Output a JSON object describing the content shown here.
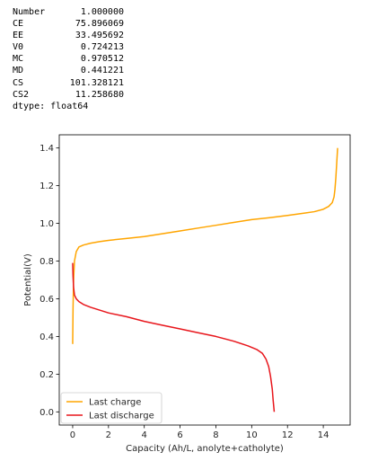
{
  "output": {
    "rows": [
      {
        "key": "Number",
        "value": "1.000000"
      },
      {
        "key": "CE",
        "value": "75.896069"
      },
      {
        "key": "EE",
        "value": "33.495692"
      },
      {
        "key": "V0",
        "value": "0.724213"
      },
      {
        "key": "MC",
        "value": "0.970512"
      },
      {
        "key": "MD",
        "value": "0.441221"
      },
      {
        "key": "CS",
        "value": "101.328121"
      },
      {
        "key": "CS2",
        "value": "11.258680"
      }
    ],
    "dtype": "dtype: float64"
  },
  "chart_data": {
    "type": "line",
    "title": "",
    "xlabel": "Capacity (Ah/L, anolyte+catholyte)",
    "ylabel": "Potential(V)",
    "xlim": [
      -0.75,
      15.5
    ],
    "ylim": [
      -0.07,
      1.47
    ],
    "x_ticks": [
      0,
      2,
      4,
      6,
      8,
      10,
      12,
      14
    ],
    "y_ticks": [
      0.0,
      0.2,
      0.4,
      0.6,
      0.8,
      1.0,
      1.2,
      1.4
    ],
    "x_tick_labels": [
      "0",
      "2",
      "4",
      "6",
      "8",
      "10",
      "12",
      "14"
    ],
    "y_tick_labels": [
      "0.0",
      "0.2",
      "0.4",
      "0.6",
      "0.8",
      "1.0",
      "1.2",
      "1.4"
    ],
    "legend_position": "lower-left",
    "series": [
      {
        "name": "Last charge",
        "color": "#FFA500",
        "x": [
          0.0,
          0.02,
          0.05,
          0.1,
          0.2,
          0.35,
          0.6,
          1.0,
          1.5,
          2.0,
          3.0,
          4.0,
          5.0,
          6.0,
          7.0,
          8.0,
          9.0,
          10.0,
          11.0,
          12.0,
          13.0,
          13.5,
          14.0,
          14.3,
          14.5,
          14.6,
          14.65,
          14.7,
          14.75,
          14.8
        ],
        "y": [
          0.36,
          0.55,
          0.7,
          0.8,
          0.85,
          0.875,
          0.885,
          0.895,
          0.903,
          0.91,
          0.92,
          0.93,
          0.945,
          0.96,
          0.975,
          0.99,
          1.005,
          1.02,
          1.03,
          1.042,
          1.055,
          1.062,
          1.075,
          1.09,
          1.11,
          1.14,
          1.18,
          1.24,
          1.32,
          1.4
        ]
      },
      {
        "name": "Last discharge",
        "color": "#E8161C",
        "x": [
          0.0,
          0.02,
          0.05,
          0.1,
          0.2,
          0.35,
          0.6,
          1.0,
          1.5,
          2.0,
          3.0,
          4.0,
          5.0,
          6.0,
          7.0,
          8.0,
          9.0,
          9.8,
          10.3,
          10.6,
          10.8,
          10.95,
          11.05,
          11.15,
          11.2,
          11.26
        ],
        "y": [
          0.79,
          0.72,
          0.66,
          0.62,
          0.6,
          0.585,
          0.57,
          0.555,
          0.54,
          0.525,
          0.505,
          0.48,
          0.46,
          0.44,
          0.42,
          0.4,
          0.375,
          0.35,
          0.33,
          0.31,
          0.28,
          0.24,
          0.19,
          0.12,
          0.06,
          0.0
        ]
      }
    ]
  }
}
